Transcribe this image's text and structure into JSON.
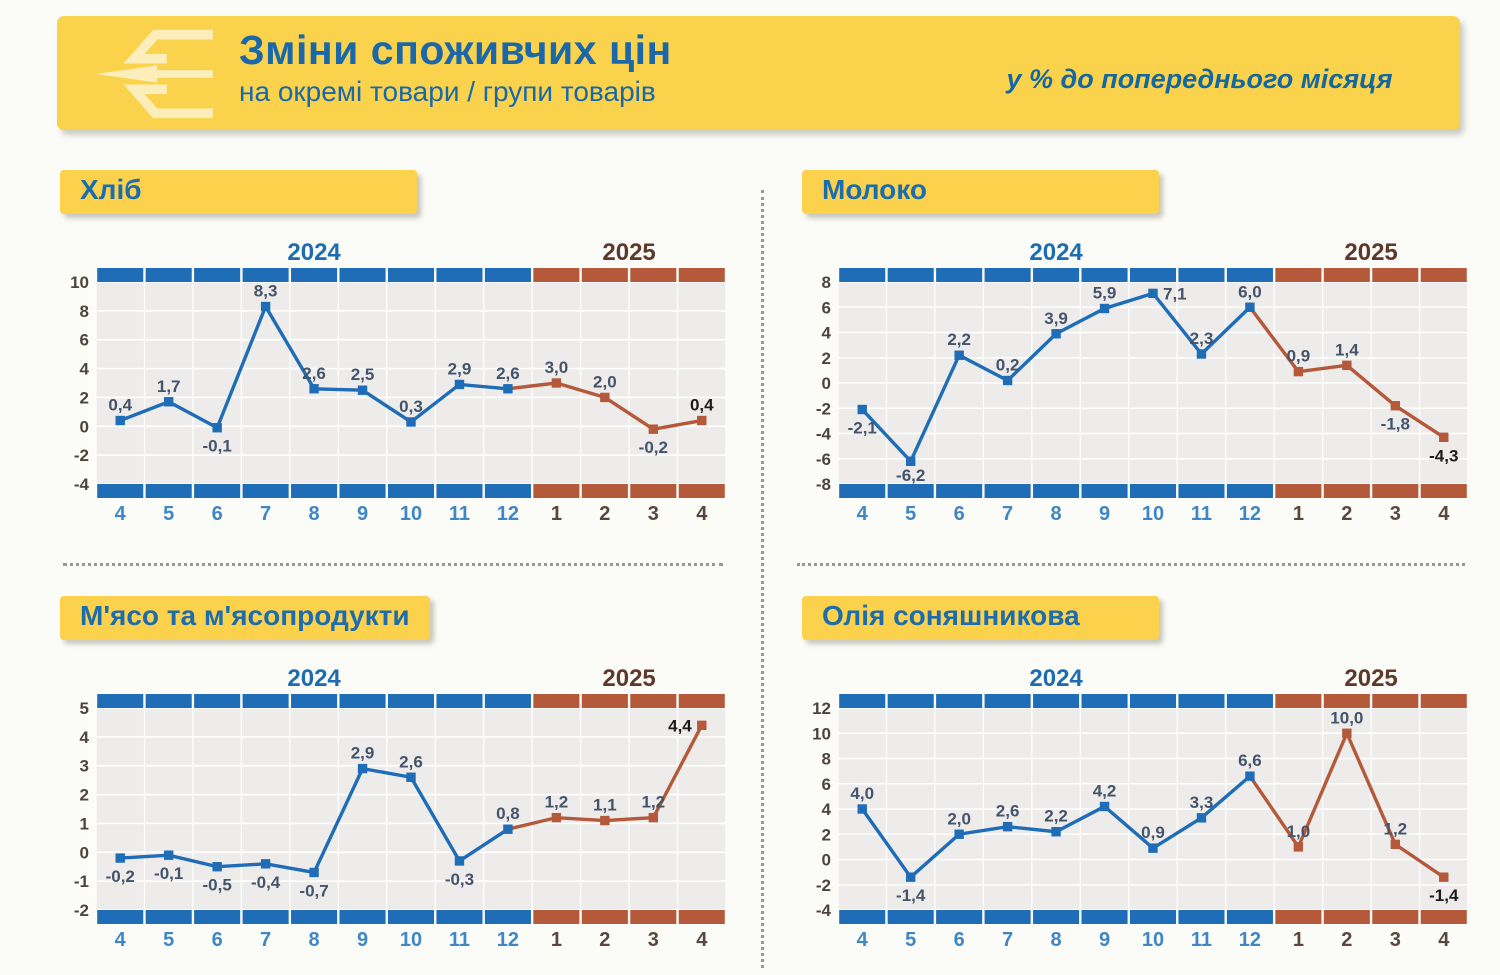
{
  "header": {
    "title": "Зміни споживчих цін",
    "subtitle": "на окремі товари / групи товарів",
    "note": "у % до попереднього місяця",
    "logo": "ukrstat-logo"
  },
  "years": [
    "2024",
    "2025"
  ],
  "colors": {
    "blue": "#1e6db6",
    "brown": "#b4593a",
    "year2024_text": "#1b6cb1",
    "year2025_text": "#5c392a",
    "month2024_text": "#3f86c5",
    "month2025_text": "#57473f",
    "ytick_text": "#4e443e",
    "data_label": "#44546a",
    "data_label_final": "#1c1c1c",
    "plot_bg": "#edeceb",
    "grid": "#ffffff",
    "yellow": "#fcd24c"
  },
  "chart_data": [
    {
      "type": "line",
      "title": "Хліб",
      "categories": [
        "4",
        "5",
        "6",
        "7",
        "8",
        "9",
        "10",
        "11",
        "12",
        "1",
        "2",
        "3",
        "4"
      ],
      "split_index": 9,
      "series_years": [
        "2024",
        "2025"
      ],
      "values": [
        0.4,
        1.7,
        -0.1,
        8.3,
        2.6,
        2.5,
        0.3,
        2.9,
        2.6,
        3.0,
        2.0,
        -0.2,
        0.4
      ],
      "value_labels": [
        "0,4",
        "1,7",
        "-0,1",
        "8,3",
        "2,6",
        "2,5",
        "0,3",
        "2,9",
        "2,6",
        "3,0",
        "2,0",
        "-0,2",
        "0,4"
      ],
      "ylim": [
        -4,
        10
      ],
      "yticks": [
        10,
        8,
        6,
        4,
        2,
        0,
        -2,
        -4
      ],
      "grid": true,
      "legend_position": "none"
    },
    {
      "type": "line",
      "title": "Молоко",
      "categories": [
        "4",
        "5",
        "6",
        "7",
        "8",
        "9",
        "10",
        "11",
        "12",
        "1",
        "2",
        "3",
        "4"
      ],
      "split_index": 9,
      "series_years": [
        "2024",
        "2025"
      ],
      "values": [
        -2.1,
        -6.2,
        2.2,
        0.2,
        3.9,
        5.9,
        7.1,
        2.3,
        6.0,
        0.9,
        1.4,
        -1.8,
        -4.3
      ],
      "value_labels": [
        "-2,1",
        "-6,2",
        "2,2",
        "0,2",
        "3,9",
        "5,9",
        "7,1",
        "2,3",
        "6,0",
        "0,9",
        "1,4",
        "-1,8",
        "-4,3"
      ],
      "ylim": [
        -8,
        8
      ],
      "yticks": [
        8,
        6,
        4,
        2,
        0,
        -2,
        -4,
        -6,
        -8
      ],
      "grid": true,
      "legend_position": "none"
    },
    {
      "type": "line",
      "title": "М'ясо та м'ясопродукти",
      "categories": [
        "4",
        "5",
        "6",
        "7",
        "8",
        "9",
        "10",
        "11",
        "12",
        "1",
        "2",
        "3",
        "4"
      ],
      "split_index": 9,
      "series_years": [
        "2024",
        "2025"
      ],
      "values": [
        -0.2,
        -0.1,
        -0.5,
        -0.4,
        -0.7,
        2.9,
        2.6,
        -0.3,
        0.8,
        1.2,
        1.1,
        1.2,
        4.4
      ],
      "value_labels": [
        "-0,2",
        "-0,1",
        "-0,5",
        "-0,4",
        "-0,7",
        "2,9",
        "2,6",
        "-0,3",
        "0,8",
        "1,2",
        "1,1",
        "1,2",
        "4,4"
      ],
      "ylim": [
        -2,
        5
      ],
      "yticks": [
        5,
        4,
        3,
        2,
        1,
        0,
        -1,
        -2
      ],
      "grid": true,
      "legend_position": "none"
    },
    {
      "type": "line",
      "title": "Олія соняшникова",
      "categories": [
        "4",
        "5",
        "6",
        "7",
        "8",
        "9",
        "10",
        "11",
        "12",
        "1",
        "2",
        "3",
        "4"
      ],
      "split_index": 9,
      "series_years": [
        "2024",
        "2025"
      ],
      "values": [
        4.0,
        -1.4,
        2.0,
        2.6,
        2.2,
        4.2,
        0.9,
        3.3,
        6.6,
        1.0,
        10.0,
        1.2,
        -1.4
      ],
      "value_labels": [
        "4,0",
        "-1,4",
        "2,0",
        "2,6",
        "2,2",
        "4,2",
        "0,9",
        "3,3",
        "6,6",
        "1,0",
        "10,0",
        "1,2",
        "-1,4"
      ],
      "ylim": [
        -4,
        12
      ],
      "yticks": [
        12,
        10,
        8,
        6,
        4,
        2,
        0,
        -2,
        -4
      ],
      "grid": true,
      "legend_position": "none"
    }
  ]
}
